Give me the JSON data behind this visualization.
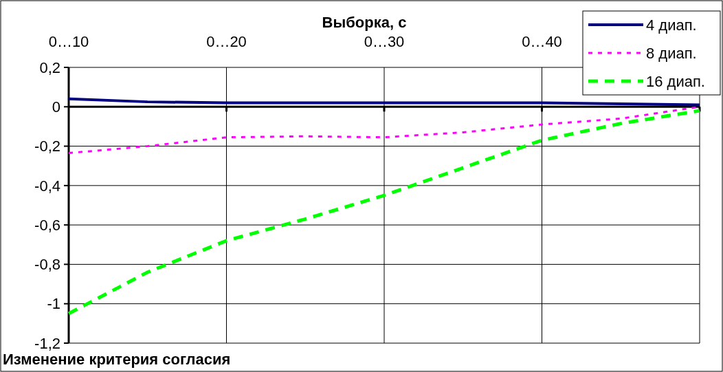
{
  "chart_data": {
    "type": "line",
    "title": "Изменение критерия согласия",
    "xlabel": "Выборка, с",
    "categories": [
      "0…10",
      null,
      "0…20",
      null,
      "0…30",
      null,
      "0…40",
      null,
      null
    ],
    "series": [
      {
        "name": "4 диап.",
        "color": "#000080",
        "line_style": "solid",
        "values": [
          0.04,
          0.025,
          0.02,
          0.02,
          0.02,
          0.02,
          0.02,
          0.015,
          0.01
        ]
      },
      {
        "name": "8 диап.",
        "color": "#ff00ff",
        "line_style": "dotted",
        "values": [
          -0.235,
          -0.2,
          -0.155,
          -0.15,
          -0.155,
          -0.13,
          -0.09,
          -0.06,
          0
        ]
      },
      {
        "name": "16 диап.",
        "color": "#00ff00",
        "line_style": "dashed",
        "values": [
          -1.05,
          -0.84,
          -0.68,
          -0.57,
          -0.45,
          -0.31,
          -0.17,
          -0.085,
          -0.02
        ]
      }
    ],
    "ylim": [
      -1.2,
      0.2
    ],
    "yticks": [
      {
        "value": 0.2,
        "label": "0,2"
      },
      0,
      {
        "value": -0.2,
        "label": "-0,2"
      },
      {
        "value": -0.4,
        "label": "-0,4"
      },
      {
        "value": -0.6,
        "label": "-0,6"
      },
      {
        "value": -0.8,
        "label": "-0,8"
      },
      -1,
      {
        "value": -1.2,
        "label": "-1,2"
      }
    ],
    "grid": true,
    "legend": "top right",
    "marker": "none"
  }
}
